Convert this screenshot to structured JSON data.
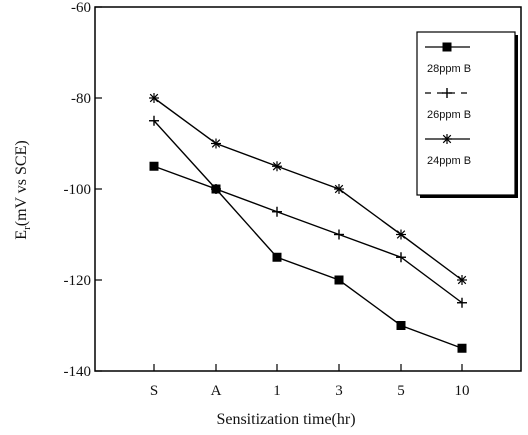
{
  "chart_data": {
    "type": "line",
    "categories": [
      "S",
      "A",
      "1",
      "3",
      "5",
      "10"
    ],
    "xlabel": "Sensitization time(hr)",
    "ylabel": "Er(mV vs SCE)",
    "ylabel_main": "E",
    "ylabel_sub": "r",
    "ylabel_rest": "(mV vs SCE)",
    "ylim": [
      -140,
      -60
    ],
    "yticks": [
      -60,
      -80,
      -100,
      -120,
      -140
    ],
    "ytick_labels": [
      "-60",
      "-80",
      "-100",
      "-120",
      "-140"
    ],
    "grid": false,
    "legend_position": "top-right",
    "series": [
      {
        "name": "28ppm B",
        "marker": "square",
        "values": [
          -95,
          -100,
          -115,
          -120,
          -130,
          -135
        ]
      },
      {
        "name": "26ppm B",
        "marker": "plus",
        "values": [
          -85,
          -100,
          -105,
          -110,
          -115,
          -125
        ]
      },
      {
        "name": "24ppm B",
        "marker": "asterisk",
        "values": [
          -80,
          -90,
          -95,
          -100,
          -110,
          -120
        ]
      }
    ]
  }
}
